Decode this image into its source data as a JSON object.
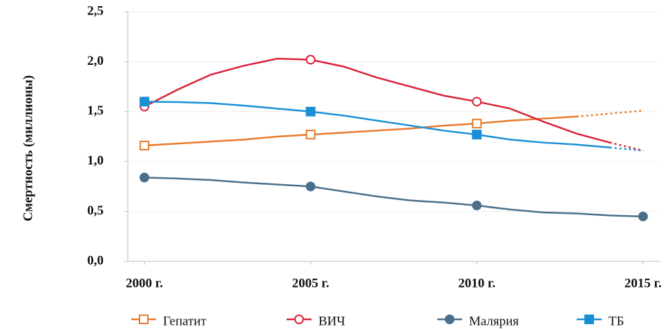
{
  "chart_data": {
    "type": "line",
    "y_label": "Смертность (миллионы)",
    "x": [
      2000,
      2001,
      2002,
      2003,
      2004,
      2005,
      2006,
      2007,
      2008,
      2009,
      2010,
      2011,
      2012,
      2013,
      2014,
      2015
    ],
    "xlim": [
      1999.5,
      2015.5
    ],
    "xticks": [
      {
        "value": 2000,
        "label": "2000 г."
      },
      {
        "value": 2005,
        "label": "2005 г."
      },
      {
        "value": 2010,
        "label": "2010 г."
      },
      {
        "value": 2015,
        "label": "2015 г."
      }
    ],
    "ylim": [
      0,
      2.5
    ],
    "yticks": [
      {
        "value": 0,
        "label": "0,0"
      },
      {
        "value": 0.5,
        "label": "0,5"
      },
      {
        "value": 1,
        "label": "1,0"
      },
      {
        "value": 1.5,
        "label": "1,5"
      },
      {
        "value": 2,
        "label": "2,0"
      },
      {
        "value": 2.5,
        "label": "2,5"
      }
    ],
    "grid": true,
    "legend": "bottom",
    "series": [
      {
        "name": "Гепатит",
        "color": "#e8792a",
        "marker": "square-open",
        "dashed_from": 2013,
        "values": [
          1.16,
          1.18,
          1.2,
          1.22,
          1.25,
          1.27,
          1.29,
          1.31,
          1.33,
          1.36,
          1.38,
          1.41,
          1.43,
          1.45,
          1.48,
          1.51
        ]
      },
      {
        "name": "ВИЧ",
        "color": "#d9213a",
        "marker": "circle-open",
        "dashed_from": 2014,
        "values": [
          1.55,
          1.72,
          1.87,
          1.96,
          2.03,
          2.02,
          1.95,
          1.84,
          1.75,
          1.66,
          1.6,
          1.53,
          1.4,
          1.28,
          1.19,
          1.11
        ]
      },
      {
        "name": "Малярия",
        "color": "#4a6f8a",
        "marker": "circle",
        "values": [
          0.84,
          0.83,
          0.815,
          0.79,
          0.77,
          0.75,
          0.7,
          0.65,
          0.61,
          0.59,
          0.56,
          0.52,
          0.49,
          0.48,
          0.46,
          0.45
        ]
      },
      {
        "name": "ТБ",
        "color": "#1a8fd6",
        "marker": "square",
        "dashed_from": 2014,
        "values": [
          1.6,
          1.595,
          1.585,
          1.56,
          1.53,
          1.5,
          1.46,
          1.41,
          1.36,
          1.31,
          1.27,
          1.22,
          1.19,
          1.17,
          1.14,
          1.11
        ]
      }
    ]
  }
}
